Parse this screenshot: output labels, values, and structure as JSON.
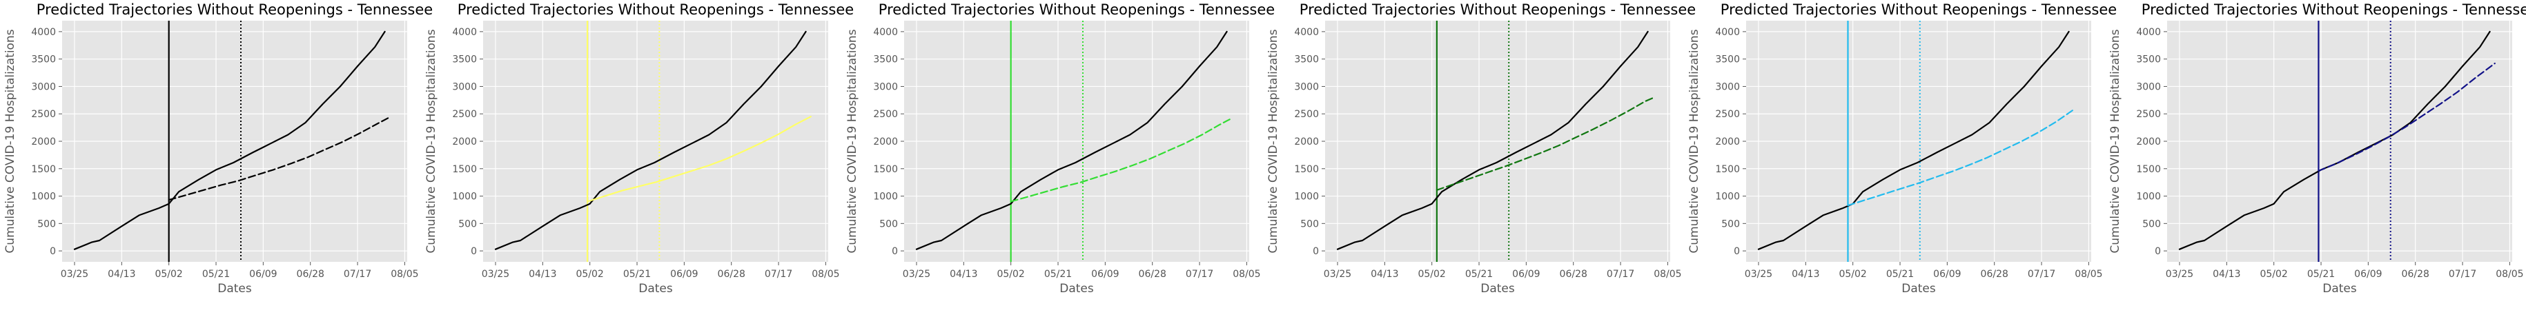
{
  "chart_data": [
    {
      "type": "line",
      "title": "Predicted Trajectories Without Reopenings - Tennessee",
      "xlabel": "Dates",
      "ylabel": "Cumulative COVID-19 Hospitalizations",
      "x_tick_labels": [
        "03/25",
        "04/13",
        "05/02",
        "05/21",
        "06/09",
        "06/28",
        "07/17",
        "08/05"
      ],
      "y_ticks": [
        0,
        500,
        1000,
        1500,
        2000,
        2500,
        3000,
        3500,
        4000
      ],
      "xlim": [
        "2020-03-20",
        "2020-08-06"
      ],
      "ylim": [
        -200,
        4200
      ],
      "grid": true,
      "accent_color": "#000000",
      "vertical_lines": [
        {
          "date": "2020-05-02",
          "style": "solid"
        },
        {
          "date": "2020-05-31",
          "style": "dotted"
        }
      ],
      "series": [
        {
          "style": "solid",
          "color": "#000000",
          "x": [
            "2020-03-25",
            "2020-04-01",
            "2020-04-04",
            "2020-04-13",
            "2020-04-20",
            "2020-04-28",
            "2020-05-02",
            "2020-05-06",
            "2020-05-14",
            "2020-05-21",
            "2020-05-28",
            "2020-06-05",
            "2020-06-12",
            "2020-06-19",
            "2020-06-26",
            "2020-07-03",
            "2020-07-10",
            "2020-07-17",
            "2020-07-24",
            "2020-07-28"
          ],
          "y": [
            30,
            160,
            190,
            450,
            650,
            780,
            860,
            1080,
            1300,
            1480,
            1610,
            1800,
            1960,
            2120,
            2340,
            2680,
            3000,
            3370,
            3720,
            4000
          ]
        },
        {
          "style": "dashed",
          "color": "#000000",
          "x": [
            "2020-05-02",
            "2020-05-09",
            "2020-05-16",
            "2020-05-23",
            "2020-05-30",
            "2020-06-06",
            "2020-06-13",
            "2020-06-20",
            "2020-06-27",
            "2020-07-04",
            "2020-07-11",
            "2020-07-18",
            "2020-07-25",
            "2020-07-30"
          ],
          "y": [
            930,
            1020,
            1110,
            1200,
            1280,
            1380,
            1480,
            1590,
            1710,
            1850,
            1990,
            2150,
            2320,
            2440
          ]
        }
      ]
    },
    {
      "type": "line",
      "title": "Predicted Trajectories Without Reopenings - Tennessee",
      "xlabel": "Dates",
      "ylabel": "Cumulative COVID-19 Hospitalizations",
      "x_tick_labels": [
        "03/25",
        "04/13",
        "05/02",
        "05/21",
        "06/09",
        "06/28",
        "07/17",
        "08/05"
      ],
      "y_ticks": [
        0,
        500,
        1000,
        1500,
        2000,
        2500,
        3000,
        3500,
        4000
      ],
      "xlim": [
        "2020-03-20",
        "2020-08-06"
      ],
      "ylim": [
        -200,
        4200
      ],
      "grid": true,
      "accent_color": "#ffff66",
      "vertical_lines": [
        {
          "date": "2020-05-01",
          "style": "solid"
        },
        {
          "date": "2020-05-30",
          "style": "dotted"
        }
      ],
      "series": [
        {
          "style": "solid",
          "color": "#000000",
          "x": [
            "2020-03-25",
            "2020-04-01",
            "2020-04-04",
            "2020-04-13",
            "2020-04-20",
            "2020-04-28",
            "2020-05-02",
            "2020-05-06",
            "2020-05-14",
            "2020-05-21",
            "2020-05-28",
            "2020-06-05",
            "2020-06-12",
            "2020-06-19",
            "2020-06-26",
            "2020-07-03",
            "2020-07-10",
            "2020-07-17",
            "2020-07-24",
            "2020-07-28"
          ],
          "y": [
            30,
            160,
            190,
            450,
            650,
            780,
            860,
            1080,
            1300,
            1480,
            1610,
            1800,
            1960,
            2120,
            2340,
            2680,
            3000,
            3370,
            3720,
            4000
          ]
        },
        {
          "style": "solid",
          "color": "#ffff66",
          "x": [
            "2020-05-01",
            "2020-05-08",
            "2020-05-15",
            "2020-05-22",
            "2020-05-29",
            "2020-06-05",
            "2020-06-12",
            "2020-06-19",
            "2020-06-26",
            "2020-07-03",
            "2020-07-10",
            "2020-07-17",
            "2020-07-24",
            "2020-07-30"
          ],
          "y": [
            900,
            1000,
            1100,
            1180,
            1260,
            1360,
            1460,
            1560,
            1680,
            1820,
            1970,
            2130,
            2310,
            2450
          ]
        }
      ]
    },
    {
      "type": "line",
      "title": "Predicted Trajectories Without Reopenings - Tennessee",
      "xlabel": "Dates",
      "ylabel": "Cumulative COVID-19 Hospitalizations",
      "x_tick_labels": [
        "03/25",
        "04/13",
        "05/02",
        "05/21",
        "06/09",
        "06/28",
        "07/17",
        "08/05"
      ],
      "y_ticks": [
        0,
        500,
        1000,
        1500,
        2000,
        2500,
        3000,
        3500,
        4000
      ],
      "xlim": [
        "2020-03-20",
        "2020-08-06"
      ],
      "ylim": [
        -200,
        4200
      ],
      "grid": true,
      "accent_color": "#33dd33",
      "vertical_lines": [
        {
          "date": "2020-05-02",
          "style": "solid"
        },
        {
          "date": "2020-05-31",
          "style": "dotted"
        }
      ],
      "series": [
        {
          "style": "solid",
          "color": "#000000",
          "x": [
            "2020-03-25",
            "2020-04-01",
            "2020-04-04",
            "2020-04-13",
            "2020-04-20",
            "2020-04-28",
            "2020-05-02",
            "2020-05-06",
            "2020-05-14",
            "2020-05-21",
            "2020-05-28",
            "2020-06-05",
            "2020-06-12",
            "2020-06-19",
            "2020-06-26",
            "2020-07-03",
            "2020-07-10",
            "2020-07-17",
            "2020-07-24",
            "2020-07-28"
          ],
          "y": [
            30,
            160,
            190,
            450,
            650,
            780,
            860,
            1080,
            1300,
            1480,
            1610,
            1800,
            1960,
            2120,
            2340,
            2680,
            3000,
            3370,
            3720,
            4000
          ]
        },
        {
          "style": "dashed",
          "color": "#33dd33",
          "x": [
            "2020-05-02",
            "2020-05-09",
            "2020-05-16",
            "2020-05-23",
            "2020-05-30",
            "2020-06-06",
            "2020-06-13",
            "2020-06-20",
            "2020-06-27",
            "2020-07-04",
            "2020-07-11",
            "2020-07-18",
            "2020-07-25",
            "2020-07-30"
          ],
          "y": [
            900,
            990,
            1080,
            1170,
            1250,
            1350,
            1450,
            1560,
            1680,
            1820,
            1960,
            2120,
            2300,
            2420
          ]
        }
      ]
    },
    {
      "type": "line",
      "title": "Predicted Trajectories Without Reopenings - Tennessee",
      "xlabel": "Dates",
      "ylabel": "Cumulative COVID-19 Hospitalizations",
      "x_tick_labels": [
        "03/25",
        "04/13",
        "05/02",
        "05/21",
        "06/09",
        "06/28",
        "07/17",
        "08/05"
      ],
      "y_ticks": [
        0,
        500,
        1000,
        1500,
        2000,
        2500,
        3000,
        3500,
        4000
      ],
      "xlim": [
        "2020-03-20",
        "2020-08-06"
      ],
      "ylim": [
        -200,
        4200
      ],
      "grid": true,
      "accent_color": "#117711",
      "vertical_lines": [
        {
          "date": "2020-05-04",
          "style": "solid"
        },
        {
          "date": "2020-06-02",
          "style": "dotted"
        }
      ],
      "series": [
        {
          "style": "solid",
          "color": "#000000",
          "x": [
            "2020-03-25",
            "2020-04-01",
            "2020-04-04",
            "2020-04-13",
            "2020-04-20",
            "2020-04-28",
            "2020-05-02",
            "2020-05-06",
            "2020-05-14",
            "2020-05-21",
            "2020-05-28",
            "2020-06-05",
            "2020-06-12",
            "2020-06-19",
            "2020-06-26",
            "2020-07-03",
            "2020-07-10",
            "2020-07-17",
            "2020-07-24",
            "2020-07-28"
          ],
          "y": [
            30,
            160,
            190,
            450,
            650,
            780,
            860,
            1080,
            1300,
            1480,
            1610,
            1800,
            1960,
            2120,
            2340,
            2680,
            3000,
            3370,
            3720,
            4000
          ]
        },
        {
          "style": "dashed",
          "color": "#117711",
          "x": [
            "2020-05-04",
            "2020-05-11",
            "2020-05-18",
            "2020-05-25",
            "2020-06-01",
            "2020-06-08",
            "2020-06-15",
            "2020-06-22",
            "2020-06-29",
            "2020-07-06",
            "2020-07-13",
            "2020-07-20",
            "2020-07-27",
            "2020-07-30"
          ],
          "y": [
            1110,
            1220,
            1330,
            1440,
            1550,
            1670,
            1790,
            1920,
            2070,
            2220,
            2380,
            2550,
            2730,
            2790
          ]
        }
      ]
    },
    {
      "type": "line",
      "title": "Predicted Trajectories Without Reopenings - Tennessee",
      "xlabel": "Dates",
      "ylabel": "Cumulative COVID-19 Hospitalizations",
      "x_tick_labels": [
        "03/25",
        "04/13",
        "05/02",
        "05/21",
        "06/09",
        "06/28",
        "07/17",
        "08/05"
      ],
      "y_ticks": [
        0,
        500,
        1000,
        1500,
        2000,
        2500,
        3000,
        3500,
        4000
      ],
      "xlim": [
        "2020-03-20",
        "2020-08-06"
      ],
      "ylim": [
        -200,
        4200
      ],
      "grid": true,
      "accent_color": "#22bbee",
      "vertical_lines": [
        {
          "date": "2020-04-30",
          "style": "solid"
        },
        {
          "date": "2020-05-29",
          "style": "dotted"
        }
      ],
      "series": [
        {
          "style": "solid",
          "color": "#000000",
          "x": [
            "2020-03-25",
            "2020-04-01",
            "2020-04-04",
            "2020-04-13",
            "2020-04-20",
            "2020-04-28",
            "2020-05-02",
            "2020-05-06",
            "2020-05-14",
            "2020-05-21",
            "2020-05-28",
            "2020-06-05",
            "2020-06-12",
            "2020-06-19",
            "2020-06-26",
            "2020-07-03",
            "2020-07-10",
            "2020-07-17",
            "2020-07-24",
            "2020-07-28"
          ],
          "y": [
            30,
            160,
            190,
            450,
            650,
            780,
            860,
            1080,
            1300,
            1480,
            1610,
            1800,
            1960,
            2120,
            2340,
            2680,
            3000,
            3370,
            3720,
            4000
          ]
        },
        {
          "style": "dashed",
          "color": "#22bbee",
          "x": [
            "2020-04-30",
            "2020-05-07",
            "2020-05-14",
            "2020-05-21",
            "2020-05-28",
            "2020-06-04",
            "2020-06-11",
            "2020-06-18",
            "2020-06-25",
            "2020-07-02",
            "2020-07-09",
            "2020-07-16",
            "2020-07-23",
            "2020-07-30"
          ],
          "y": [
            830,
            930,
            1030,
            1130,
            1230,
            1340,
            1450,
            1570,
            1700,
            1850,
            2000,
            2170,
            2360,
            2580
          ]
        }
      ]
    },
    {
      "type": "line",
      "title": "Predicted Trajectories Without Reopenings - Tennessee",
      "xlabel": "Dates",
      "ylabel": "Cumulative COVID-19 Hospitalizations",
      "x_tick_labels": [
        "03/25",
        "04/13",
        "05/02",
        "05/21",
        "06/09",
        "06/28",
        "07/17",
        "08/05"
      ],
      "y_ticks": [
        0,
        500,
        1000,
        1500,
        2000,
        2500,
        3000,
        3500,
        4000
      ],
      "xlim": [
        "2020-03-20",
        "2020-08-06"
      ],
      "ylim": [
        -200,
        4200
      ],
      "grid": true,
      "accent_color": "#111188",
      "vertical_lines": [
        {
          "date": "2020-05-20",
          "style": "solid"
        },
        {
          "date": "2020-06-18",
          "style": "dotted"
        }
      ],
      "series": [
        {
          "style": "solid",
          "color": "#000000",
          "x": [
            "2020-03-25",
            "2020-04-01",
            "2020-04-04",
            "2020-04-13",
            "2020-04-20",
            "2020-04-28",
            "2020-05-02",
            "2020-05-06",
            "2020-05-14",
            "2020-05-21",
            "2020-05-28",
            "2020-06-05",
            "2020-06-12",
            "2020-06-19",
            "2020-06-26",
            "2020-07-03",
            "2020-07-10",
            "2020-07-17",
            "2020-07-24",
            "2020-07-28"
          ],
          "y": [
            30,
            160,
            190,
            450,
            650,
            780,
            860,
            1080,
            1300,
            1480,
            1610,
            1800,
            1960,
            2120,
            2340,
            2680,
            3000,
            3370,
            3720,
            4000
          ]
        },
        {
          "style": "dashed",
          "color": "#111188",
          "x": [
            "2020-05-20",
            "2020-05-27",
            "2020-06-03",
            "2020-06-10",
            "2020-06-17",
            "2020-06-24",
            "2020-07-01",
            "2020-07-08",
            "2020-07-15",
            "2020-07-22",
            "2020-07-30"
          ],
          "y": [
            1460,
            1590,
            1740,
            1900,
            2070,
            2260,
            2470,
            2680,
            2900,
            3150,
            3420
          ]
        }
      ]
    }
  ]
}
